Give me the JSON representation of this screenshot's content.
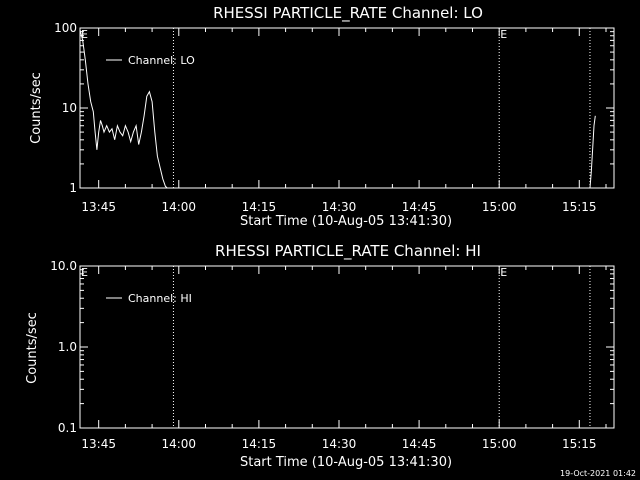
{
  "chart_data": [
    {
      "type": "line",
      "title": "RHESSI PARTICLE_RATE Channel: LO",
      "xlabel": "Start Time (10-Aug-05 13:41:30)",
      "ylabel": "Counts/sec",
      "yscale": "log",
      "ylim": [
        1,
        100
      ],
      "yticks": [
        1,
        10,
        100
      ],
      "ytick_labels": [
        "1",
        "10",
        "100"
      ],
      "xlim_minutes": [
        13.5,
        1.0
      ],
      "xticks": [
        "13:45",
        "14:00",
        "14:15",
        "14:30",
        "14:45",
        "15:00",
        "15:15"
      ],
      "event_lines": [
        {
          "time": "13:59",
          "label": ""
        },
        {
          "time": "15:00",
          "label": "E"
        },
        {
          "time": "15:17",
          "label": ""
        }
      ],
      "event_start_label": "E",
      "legend": {
        "label": "Channel: LO",
        "position": "top-left"
      },
      "series": [
        {
          "name": "Channel: LO",
          "segments": [
            {
              "x": [
                "13:41:30",
                "13:42:00",
                "13:42:30",
                "13:43:00",
                "13:43:30",
                "13:44:00",
                "13:44:20",
                "13:44:40",
                "13:45:00",
                "13:45:20",
                "13:45:40",
                "13:46:00",
                "13:46:30",
                "13:47:00",
                "13:47:30",
                "13:48:00",
                "13:48:30",
                "13:49:00",
                "13:49:30",
                "13:50:00",
                "13:50:30",
                "13:51:00",
                "13:51:30",
                "13:52:00",
                "13:52:30",
                "13:53:00",
                "13:53:30",
                "13:54:00",
                "13:54:30",
                "13:55:00",
                "13:55:30",
                "13:56:00",
                "13:56:30",
                "13:57:00",
                "13:57:30",
                "13:57:50"
              ],
              "y": [
                95,
                70,
                40,
                20,
                12,
                9,
                5,
                3,
                5,
                7,
                6,
                5,
                6,
                5,
                5.5,
                4,
                6,
                5,
                4.5,
                6,
                5,
                3.8,
                5,
                6,
                3.5,
                5,
                8,
                14,
                16,
                12,
                5,
                2.5,
                1.8,
                1.3,
                1.05,
                1
              ]
            },
            {
              "x": [
                "15:17:00",
                "15:17:15",
                "15:17:30",
                "15:17:45",
                "15:18:00"
              ],
              "y": [
                1,
                1.6,
                3,
                6,
                8
              ]
            }
          ]
        }
      ]
    },
    {
      "type": "line",
      "title": "RHESSI PARTICLE_RATE Channel: HI",
      "xlabel": "Start Time (10-Aug-05 13:41:30)",
      "ylabel": "Counts/sec",
      "yscale": "log",
      "ylim": [
        0.1,
        10
      ],
      "yticks": [
        0.1,
        1,
        10
      ],
      "ytick_labels": [
        "0.1",
        "1.0",
        "10.0"
      ],
      "xticks": [
        "13:45",
        "14:00",
        "14:15",
        "14:30",
        "14:45",
        "15:00",
        "15:15"
      ],
      "event_lines": [
        {
          "time": "13:59",
          "label": ""
        },
        {
          "time": "15:00",
          "label": "E"
        },
        {
          "time": "15:17",
          "label": ""
        }
      ],
      "event_start_label": "E",
      "legend": {
        "label": "Channel: HI",
        "position": "top-left"
      },
      "series": [
        {
          "name": "Channel: HI",
          "segments": []
        }
      ]
    }
  ],
  "footer": {
    "timestamp": "19-Oct-2021 01:42"
  },
  "colors": {
    "background": "#000000",
    "foreground": "#ffffff"
  }
}
